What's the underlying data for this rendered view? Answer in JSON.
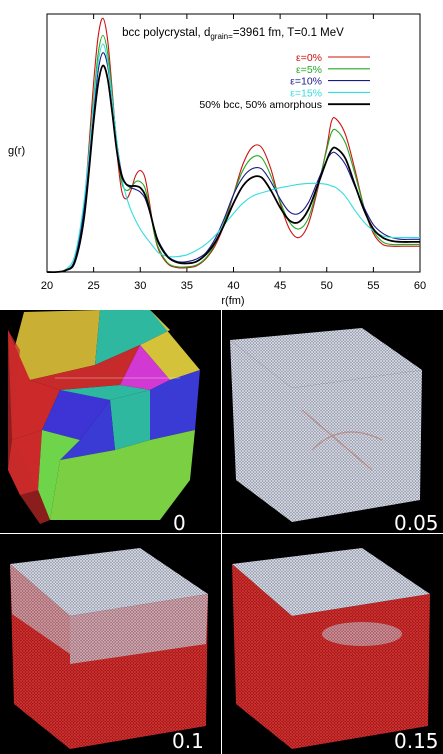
{
  "figure": {
    "panel_labels": [
      "0",
      "0.05",
      "0.1",
      "0.15"
    ]
  },
  "colors": {
    "eps0": "#cc1111",
    "eps5": "#22aa22",
    "eps10": "#1a1a8c",
    "eps15": "#33dddd",
    "mixed": "#000000",
    "panel_bg": "#000000",
    "atom_white": "#d8dce6",
    "atom_red": "#cc2222"
  },
  "chart_data": {
    "type": "line",
    "title_prefix": "bcc polycrystal, d",
    "title_sub": "grain=",
    "title_suffix": "=3961 fm, T=0.1 MeV",
    "xlabel": "r(fm)",
    "ylabel": "g(r)",
    "xlim": [
      20,
      60
    ],
    "ylim": [
      0,
      3.0
    ],
    "xticks": [
      "20",
      "25",
      "30",
      "35",
      "40",
      "45",
      "50",
      "55",
      "60"
    ],
    "legend_placement": "top-right",
    "series": [
      {
        "name": "ε=0%",
        "color": "#cc1111",
        "x": [
          20,
          21,
          22,
          23,
          24,
          25,
          25.5,
          26,
          26.5,
          27,
          27.5,
          28,
          28.5,
          29,
          29.5,
          30,
          30.5,
          31,
          31.5,
          32,
          33,
          34,
          35,
          36,
          37,
          38,
          39,
          40,
          41,
          42,
          43,
          44,
          45,
          46,
          47,
          48,
          49,
          50,
          50.5,
          51,
          52,
          53,
          54,
          55,
          56,
          57,
          58,
          59,
          60
        ],
        "y": [
          0,
          0,
          0.02,
          0.15,
          0.8,
          2.2,
          2.75,
          2.95,
          2.7,
          2.1,
          1.4,
          0.95,
          0.85,
          0.95,
          1.12,
          1.18,
          1.1,
          0.8,
          0.45,
          0.25,
          0.09,
          0.05,
          0.05,
          0.07,
          0.15,
          0.3,
          0.55,
          0.9,
          1.25,
          1.45,
          1.45,
          1.2,
          0.8,
          0.5,
          0.4,
          0.55,
          0.95,
          1.45,
          1.75,
          1.78,
          1.6,
          1.2,
          0.75,
          0.45,
          0.32,
          0.3,
          0.3,
          0.3,
          0.3
        ]
      },
      {
        "name": "ε=5%",
        "color": "#22aa22",
        "x": [
          20,
          21,
          22,
          23,
          24,
          25,
          25.5,
          26,
          26.5,
          27,
          27.5,
          28,
          28.5,
          29,
          29.5,
          30,
          30.5,
          31,
          31.5,
          32,
          33,
          34,
          35,
          36,
          37,
          38,
          39,
          40,
          41,
          42,
          43,
          44,
          45,
          46,
          47,
          48,
          49,
          50,
          50.5,
          51,
          52,
          53,
          54,
          55,
          56,
          57,
          58,
          59,
          60
        ],
        "y": [
          0,
          0,
          0.02,
          0.15,
          0.78,
          2.0,
          2.55,
          2.75,
          2.55,
          2.05,
          1.45,
          1.05,
          0.95,
          0.98,
          1.05,
          1.05,
          0.98,
          0.75,
          0.45,
          0.27,
          0.1,
          0.06,
          0.06,
          0.08,
          0.16,
          0.32,
          0.58,
          0.9,
          1.18,
          1.33,
          1.33,
          1.12,
          0.82,
          0.58,
          0.5,
          0.62,
          0.98,
          1.42,
          1.62,
          1.65,
          1.5,
          1.15,
          0.75,
          0.48,
          0.35,
          0.32,
          0.32,
          0.32,
          0.32
        ]
      },
      {
        "name": "ε=10%",
        "color": "#1a1a8c",
        "x": [
          20,
          21,
          22,
          23,
          24,
          25,
          25.5,
          26,
          26.5,
          27,
          27.5,
          28,
          28.5,
          29,
          29.5,
          30,
          30.5,
          31,
          31.5,
          32,
          33,
          34,
          35,
          36,
          37,
          38,
          39,
          40,
          41,
          42,
          43,
          44,
          45,
          46,
          47,
          48,
          49,
          50,
          50.5,
          51,
          52,
          53,
          54,
          55,
          56,
          57,
          58,
          59,
          60
        ],
        "y": [
          0,
          0,
          0.02,
          0.15,
          0.75,
          1.85,
          2.35,
          2.55,
          2.4,
          2.0,
          1.5,
          1.15,
          1.02,
          0.98,
          0.96,
          0.93,
          0.86,
          0.7,
          0.5,
          0.35,
          0.18,
          0.12,
          0.12,
          0.15,
          0.22,
          0.38,
          0.62,
          0.9,
          1.1,
          1.2,
          1.2,
          1.05,
          0.85,
          0.7,
          0.68,
          0.8,
          1.05,
          1.3,
          1.38,
          1.38,
          1.25,
          1.0,
          0.75,
          0.55,
          0.45,
          0.4,
          0.38,
          0.38,
          0.38
        ]
      },
      {
        "name": "ε=15%",
        "color": "#33dddd",
        "x": [
          20,
          21,
          22,
          23,
          24,
          25,
          25.5,
          26,
          26.5,
          27,
          27.5,
          28,
          28.5,
          29,
          29.5,
          30,
          30.5,
          31,
          31.5,
          32,
          33,
          34,
          35,
          36,
          37,
          38,
          39,
          40,
          41,
          42,
          43,
          44,
          45,
          46,
          47,
          48,
          49,
          50,
          50.5,
          51,
          52,
          53,
          54,
          55,
          56,
          57,
          58,
          59,
          60
        ],
        "y": [
          0,
          0,
          0.03,
          0.2,
          0.85,
          1.95,
          2.45,
          2.65,
          2.45,
          2.0,
          1.5,
          1.1,
          0.88,
          0.72,
          0.6,
          0.5,
          0.42,
          0.35,
          0.28,
          0.22,
          0.18,
          0.18,
          0.2,
          0.25,
          0.32,
          0.42,
          0.55,
          0.68,
          0.8,
          0.88,
          0.92,
          0.95,
          0.98,
          1.0,
          1.02,
          1.03,
          1.03,
          1.02,
          1.0,
          0.98,
          0.88,
          0.72,
          0.58,
          0.48,
          0.42,
          0.4,
          0.4,
          0.4,
          0.4
        ]
      },
      {
        "name": "50% bcc, 50% amorphous",
        "color": "#000000",
        "x": [
          20,
          21,
          22,
          23,
          24,
          25,
          25.5,
          26,
          26.5,
          27,
          27.5,
          28,
          28.5,
          29,
          29.5,
          30,
          30.5,
          31,
          31.5,
          32,
          33,
          34,
          35,
          36,
          37,
          38,
          39,
          40,
          41,
          42,
          43,
          44,
          45,
          46,
          47,
          48,
          49,
          50,
          50.5,
          51,
          52,
          53,
          54,
          55,
          56,
          57,
          58,
          59,
          60
        ],
        "y": [
          0,
          0,
          0.02,
          0.12,
          0.65,
          1.75,
          2.2,
          2.4,
          2.25,
          1.85,
          1.4,
          1.12,
          1.02,
          1.0,
          1.0,
          0.98,
          0.9,
          0.72,
          0.5,
          0.33,
          0.17,
          0.11,
          0.1,
          0.12,
          0.2,
          0.34,
          0.55,
          0.8,
          1.0,
          1.1,
          1.1,
          0.95,
          0.75,
          0.6,
          0.58,
          0.72,
          1.0,
          1.3,
          1.42,
          1.44,
          1.32,
          1.02,
          0.72,
          0.5,
          0.4,
          0.36,
          0.35,
          0.35,
          0.35
        ]
      }
    ]
  }
}
